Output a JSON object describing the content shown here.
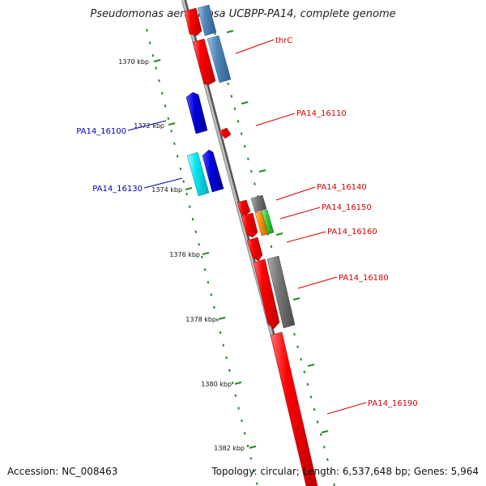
{
  "title": "Pseudomonas aeruginosa UCBPP-PA14, complete genome",
  "footer": {
    "accession": "Accession: NC_008463",
    "info": "Topology: circular; Length: 6,537,648 bp; Genes: 5,964"
  },
  "ruler": {
    "labels": [
      "1370 kbp",
      "1372 kbp",
      "1374 kbp",
      "1376 kbp",
      "1378 kbp",
      "1380 kbp",
      "1382 kbp"
    ]
  },
  "gene_labels": {
    "forward": [
      "thrC",
      "PA14_16110",
      "PA14_16140",
      "PA14_16150",
      "PA14_16160",
      "PA14_16180",
      "PA14_16190"
    ],
    "reverse": [
      "PA14_16100",
      "PA14_16130"
    ]
  },
  "colors": {
    "backbone": "#8c8c8c",
    "tick": "#1f8a1f",
    "red_gene": "#ff0000",
    "steel_blue_gene": "#4f86b8",
    "grey_gene": "#777777",
    "orange_gene": "#ff8c00",
    "green_gene": "#33cc33",
    "blue_gene": "#0000dd",
    "cyan_gene": "#00e5f0",
    "forward_label": "#d40000",
    "reverse_label": "#0000b0"
  }
}
